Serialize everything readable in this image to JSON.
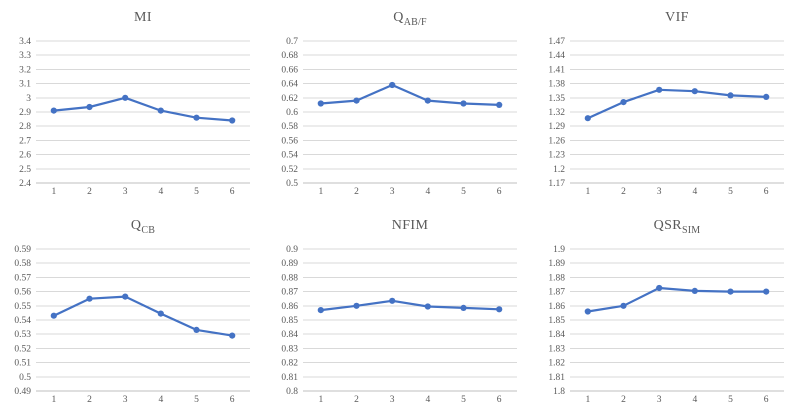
{
  "colors": {
    "line": "#4472C4",
    "marker": "#4472C4",
    "gridline": "#D9D9D9",
    "axis_line": "#BFBFBF",
    "tick_label": "#595959",
    "title": "#595959",
    "background": "#FFFFFF"
  },
  "chart_data": [
    {
      "type": "line",
      "title": "MI",
      "title_sub": "",
      "categories": [
        "1",
        "2",
        "3",
        "4",
        "5",
        "6"
      ],
      "values": [
        2.91,
        2.935,
        3.0,
        2.91,
        2.86,
        2.84
      ],
      "y_ticks": [
        "3.4",
        "3.3",
        "3.2",
        "3.1",
        "3",
        "2.9",
        "2.8",
        "2.7",
        "2.6",
        "2.5",
        "2.4"
      ],
      "ylim": [
        2.4,
        3.4
      ],
      "grid": "horizontal",
      "legend": "none",
      "line_color": "#4472C4"
    },
    {
      "type": "line",
      "title": "Q",
      "title_sub": "AB/F",
      "categories": [
        "1",
        "2",
        "3",
        "4",
        "5",
        "6"
      ],
      "values": [
        0.612,
        0.616,
        0.638,
        0.616,
        0.612,
        0.61
      ],
      "y_ticks": [
        "0.7",
        "0.68",
        "0.66",
        "0.64",
        "0.62",
        "0.6",
        "0.58",
        "0.56",
        "0.54",
        "0.52",
        "0.5"
      ],
      "ylim": [
        0.5,
        0.7
      ],
      "grid": "horizontal",
      "legend": "none",
      "line_color": "#4472C4"
    },
    {
      "type": "line",
      "title": "VIF",
      "title_sub": "",
      "categories": [
        "1",
        "2",
        "3",
        "4",
        "5",
        "6"
      ],
      "values": [
        1.307,
        1.341,
        1.367,
        1.364,
        1.355,
        1.352
      ],
      "y_ticks": [
        "1.47",
        "1.44",
        "1.41",
        "1.38",
        "1.35",
        "1.32",
        "1.29",
        "1.26",
        "1.23",
        "1.2",
        "1.17"
      ],
      "ylim": [
        1.17,
        1.47
      ],
      "grid": "horizontal",
      "legend": "none",
      "line_color": "#4472C4"
    },
    {
      "type": "line",
      "title": "Q",
      "title_sub": "CB",
      "categories": [
        "1",
        "2",
        "3",
        "4",
        "5",
        "6"
      ],
      "values": [
        0.543,
        0.555,
        0.5565,
        0.5445,
        0.533,
        0.529
      ],
      "y_ticks": [
        "0.59",
        "0.58",
        "0.57",
        "0.56",
        "0.55",
        "0.54",
        "0.53",
        "0.52",
        "0.51",
        "0.5",
        "0.49"
      ],
      "ylim": [
        0.49,
        0.59
      ],
      "grid": "horizontal",
      "legend": "none",
      "line_color": "#4472C4"
    },
    {
      "type": "line",
      "title": "NFIM",
      "title_sub": "",
      "categories": [
        "1",
        "2",
        "3",
        "4",
        "5",
        "6"
      ],
      "values": [
        0.857,
        0.86,
        0.8635,
        0.8595,
        0.8585,
        0.8575
      ],
      "y_ticks": [
        "0.9",
        "0.89",
        "0.88",
        "0.87",
        "0.86",
        "0.85",
        "0.84",
        "0.83",
        "0.82",
        "0.81",
        "0.8"
      ],
      "ylim": [
        0.8,
        0.9
      ],
      "grid": "horizontal",
      "legend": "none",
      "line_color": "#4472C4"
    },
    {
      "type": "line",
      "title": "QSR",
      "title_sub": "SIM",
      "categories": [
        "1",
        "2",
        "3",
        "4",
        "5",
        "6"
      ],
      "values": [
        1.856,
        1.86,
        1.8725,
        1.8705,
        1.87,
        1.87
      ],
      "y_ticks": [
        "1.9",
        "1.89",
        "1.88",
        "1.87",
        "1.86",
        "1.85",
        "1.84",
        "1.83",
        "1.82",
        "1.81",
        "1.8"
      ],
      "ylim": [
        1.8,
        1.9
      ],
      "grid": "horizontal",
      "legend": "none",
      "line_color": "#4472C4"
    }
  ]
}
